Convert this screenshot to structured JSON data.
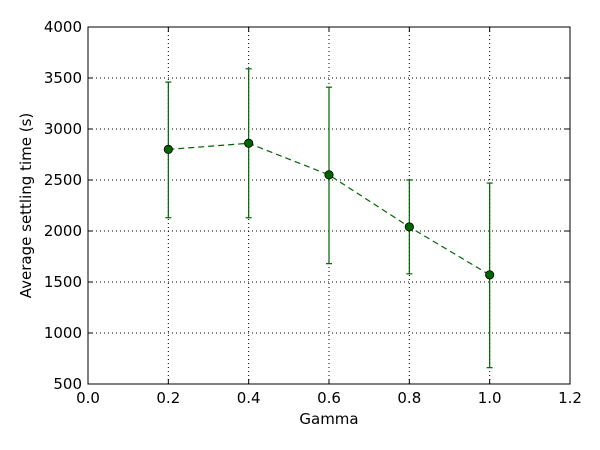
{
  "chart_data": {
    "type": "scatter",
    "title": "",
    "xlabel": "Gamma",
    "ylabel": "Average settling time (s)",
    "xlim": [
      0.0,
      1.2
    ],
    "ylim": [
      500,
      4000
    ],
    "x_ticks": [
      "0.0",
      "0.2",
      "0.4",
      "0.6",
      "0.8",
      "1.0",
      "1.2"
    ],
    "y_ticks": [
      "500",
      "1000",
      "1500",
      "2000",
      "2500",
      "3000",
      "3500",
      "4000"
    ],
    "grid": true,
    "series": [
      {
        "color": "#006400",
        "line_style": "dashed",
        "marker": "circle",
        "points": [
          {
            "x": 0.2,
            "y": 2800,
            "y_low": 2130,
            "y_high": 3460
          },
          {
            "x": 0.4,
            "y": 2860,
            "y_low": 2130,
            "y_high": 3590
          },
          {
            "x": 0.6,
            "y": 2550,
            "y_low": 1680,
            "y_high": 3410
          },
          {
            "x": 0.8,
            "y": 2040,
            "y_low": 1580,
            "y_high": 2500
          },
          {
            "x": 1.0,
            "y": 1570,
            "y_low": 660,
            "y_high": 2470
          }
        ]
      }
    ]
  }
}
